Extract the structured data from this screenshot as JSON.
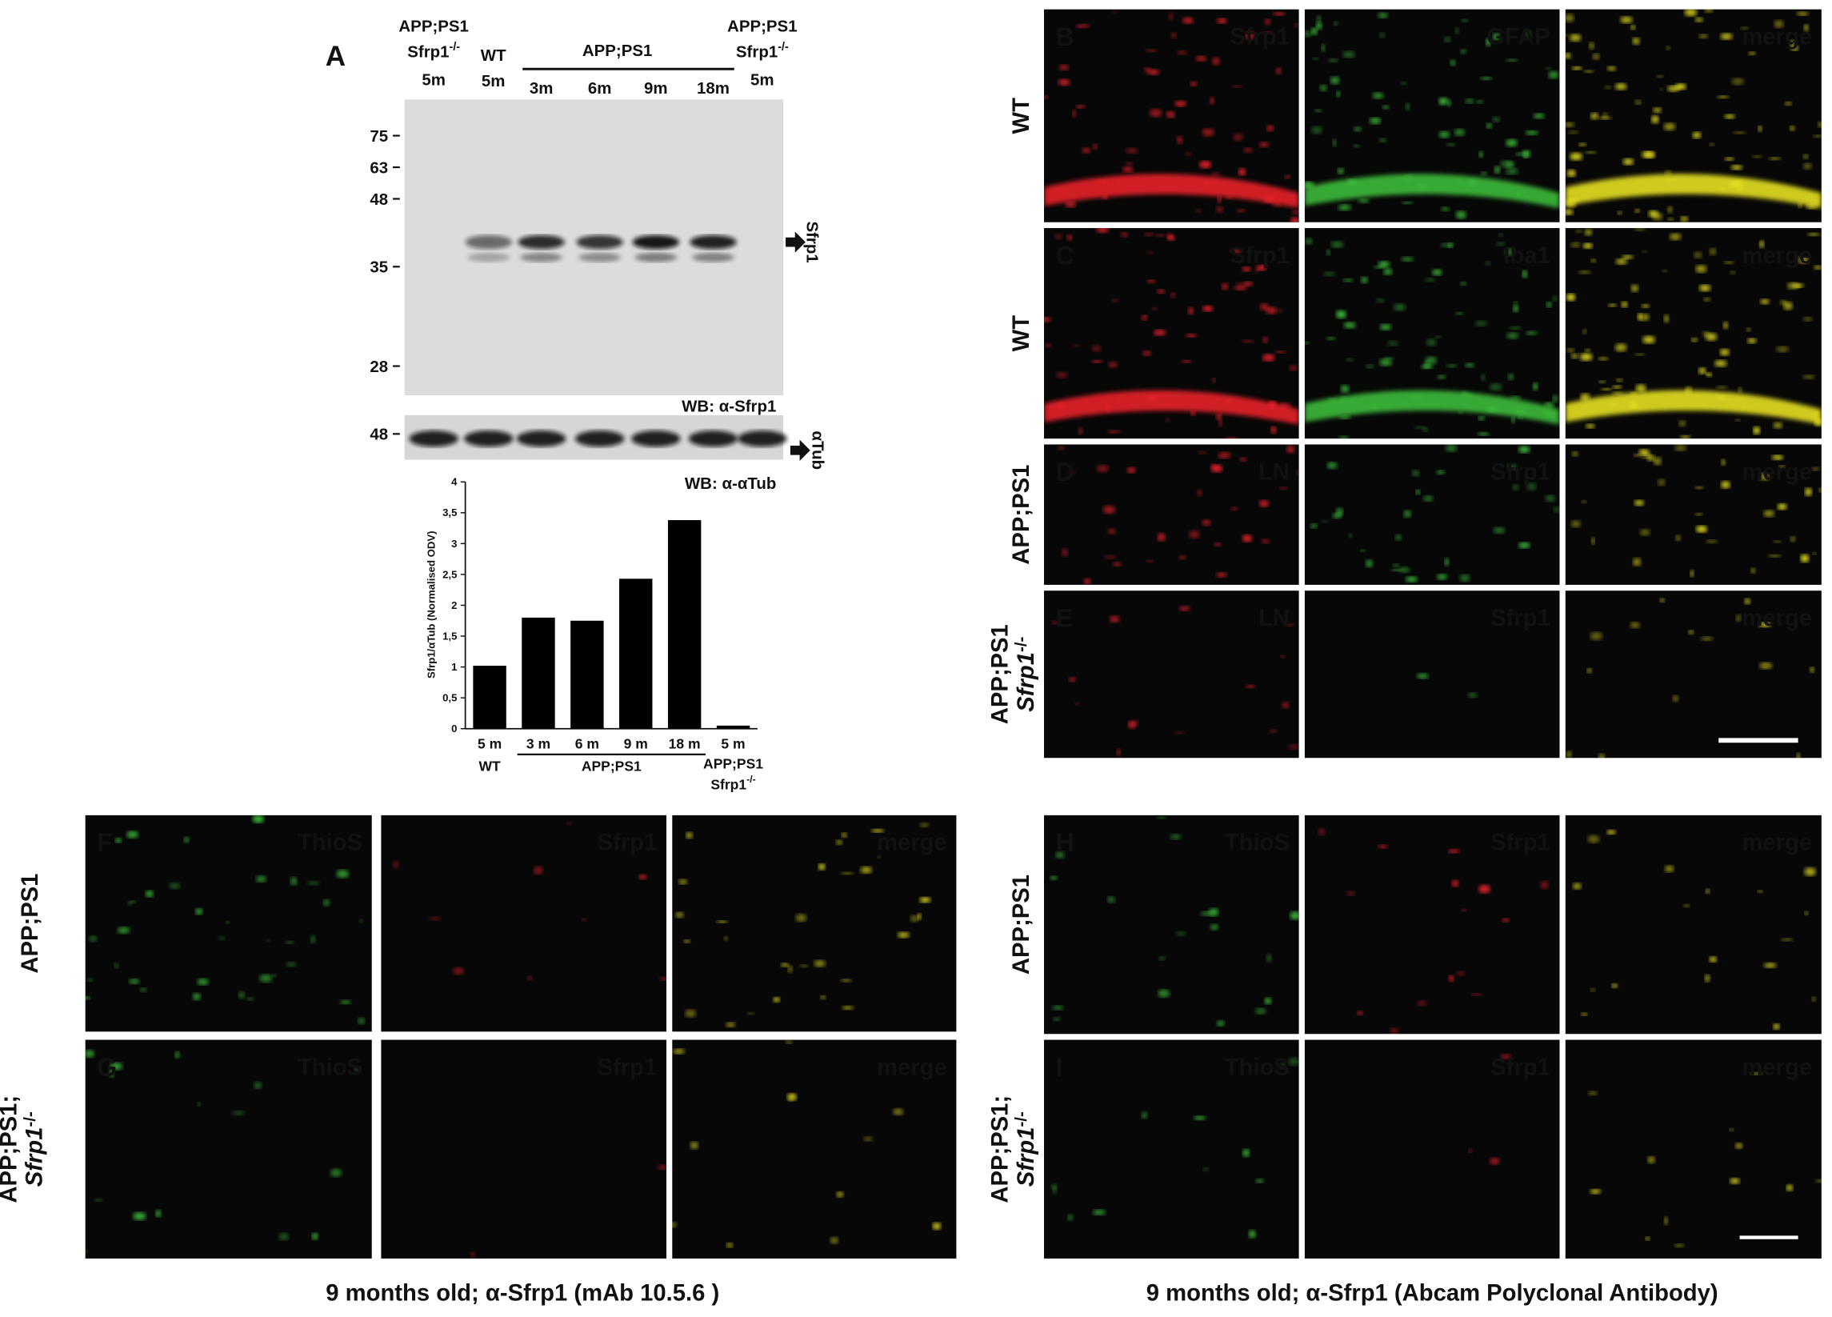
{
  "blot": {
    "label": "A",
    "header_left": {
      "line1": "APP;PS1",
      "gene": "Sfrp1",
      "sup": "-/-",
      "age": "5m"
    },
    "header_wt": {
      "line1": "WT",
      "age": "5m"
    },
    "header_group": {
      "name": "APP;PS1",
      "ages": [
        "3m",
        "6m",
        "9m",
        "18m"
      ]
    },
    "header_right": {
      "line1": "APP;PS1",
      "gene": "Sfrp1",
      "sup": "-/-",
      "age": "5m"
    },
    "markers": [
      75,
      63,
      48,
      35,
      28
    ],
    "band_label": "Sfrp1",
    "wb_top": "WB: α-Sfrp1",
    "tub_marker": 48,
    "tub_label": "αTub",
    "wb_bottom": "WB: α-αTub"
  },
  "chart_data": {
    "type": "bar",
    "y_label": "Sfrp1/αTub (Normalised ODV)",
    "categories": [
      "5 m",
      "3 m",
      "6 m",
      "9 m",
      "18 m",
      "5 m"
    ],
    "values": [
      1.02,
      1.8,
      1.75,
      2.43,
      3.38,
      0.05
    ],
    "color": "#000000",
    "ylim": [
      0,
      4
    ],
    "yticks": [
      0,
      {
        "value": 0.5,
        "label": "0,5"
      },
      1,
      {
        "value": 1.5,
        "label": "1,5"
      },
      2,
      {
        "value": 2.5,
        "label": "2,5"
      },
      3,
      {
        "value": 3.5,
        "label": "3,5"
      },
      4
    ],
    "groups": [
      {
        "line1": "WT"
      },
      {
        "line1": "APP;PS1"
      },
      {
        "line1": "APP;PS1",
        "line2": "Sfrp1",
        "sup": "-/-"
      }
    ]
  },
  "right_grid": [
    {
      "panel": "B",
      "row": {
        "line1": "WT"
      },
      "channels": [
        "Sfrp1",
        "GFAP",
        "merge"
      ],
      "channel_colors": [
        "#e8242a",
        "#3dbb3a",
        "#e6e020"
      ]
    },
    {
      "panel": "C",
      "row": {
        "line1": "WT"
      },
      "channels": [
        "Sfrp1",
        "Iba1",
        "merge"
      ],
      "channel_colors": [
        "#e8242a",
        "#3dbb3a",
        "#e6e020"
      ]
    },
    {
      "panel": "D",
      "row": {
        "line1": "APP;PS1"
      },
      "channels": [
        "LN",
        "Sfrp1",
        "merge"
      ],
      "channel_colors": [
        "#e8242a",
        "#3dbb3a",
        "#e6e020"
      ]
    },
    {
      "panel": "E",
      "row": {
        "line1": "APP;PS1",
        "gene": "Sfrp1",
        "sup": "-/-"
      },
      "channels": [
        "LN",
        "Sfrp1",
        "merge"
      ],
      "channel_colors": [
        "#e8242a",
        "#3dbb3a",
        "#e6e020"
      ]
    }
  ],
  "bottom_left": {
    "rows": [
      {
        "panel": "F",
        "row": {
          "line1": "APP;PS1"
        },
        "channels": [
          "ThioS",
          "Sfrp1",
          "merge"
        ],
        "channel_colors": [
          "#3dbb3a",
          "#e8242a",
          "#e6e020"
        ]
      },
      {
        "panel": "G",
        "row": {
          "line1": "APP;PS1;",
          "gene": "Sfrp1",
          "sup": "-/-"
        },
        "channels": [
          "ThioS",
          "Sfrp1",
          "merge"
        ],
        "channel_colors": [
          "#3dbb3a",
          "#e8242a",
          "#e6e020"
        ]
      }
    ],
    "caption": "9 months old; α-Sfrp1 (mAb 10.5.6 )"
  },
  "bottom_right": {
    "rows": [
      {
        "panel": "H",
        "row": {
          "line1": "APP;PS1"
        },
        "channels": [
          "ThioS",
          "Sfrp1",
          "merge"
        ],
        "channel_colors": [
          "#3dbb3a",
          "#e8242a",
          "#e6e020"
        ]
      },
      {
        "panel": "I",
        "row": {
          "line1": "APP;PS1;",
          "gene": "Sfrp1",
          "sup": "-/-"
        },
        "channels": [
          "ThioS",
          "Sfrp1",
          "merge"
        ],
        "channel_colors": [
          "#3dbb3a",
          "#e8242a",
          "#e6e020"
        ]
      }
    ],
    "caption": "9 months old; α-Sfrp1 (Abcam Polyclonal Antibody)"
  }
}
